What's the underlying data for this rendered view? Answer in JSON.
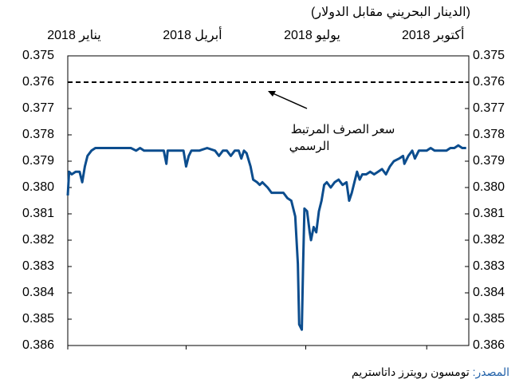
{
  "chart_data": {
    "type": "line",
    "title": "(الدينار البحريني مقابل الدولار)",
    "x": [
      0,
      1,
      3,
      6,
      9,
      11,
      13,
      15,
      18,
      21,
      24,
      30,
      39,
      45,
      48,
      52,
      55,
      58,
      61,
      64,
      70,
      73,
      75,
      76,
      79,
      82,
      85,
      88,
      90,
      92,
      94,
      97,
      100,
      106,
      112,
      115,
      118,
      121,
      124,
      127,
      130,
      132,
      134,
      136,
      139,
      141,
      144,
      146,
      148,
      152,
      155,
      158,
      161,
      164,
      167,
      170,
      173,
      175,
      176,
      178,
      179,
      180,
      182,
      184,
      185,
      187,
      189,
      191,
      193,
      195,
      197,
      200,
      203,
      206,
      209,
      212,
      214,
      216,
      218,
      220,
      222,
      224,
      227,
      230,
      233,
      236,
      239,
      242,
      245,
      248,
      252,
      255,
      256,
      259,
      262,
      264,
      267,
      270,
      273,
      276,
      279,
      282,
      285,
      288,
      291,
      294,
      297,
      300,
      303
    ],
    "series": [
      {
        "color": "#0c4d8e",
        "values": [
          0.3803,
          0.3794,
          0.3795,
          0.3794,
          0.3794,
          0.3798,
          0.3792,
          0.3788,
          0.3786,
          0.3785,
          0.3785,
          0.3785,
          0.3785,
          0.3785,
          0.3785,
          0.3786,
          0.3785,
          0.3786,
          0.3786,
          0.3786,
          0.3786,
          0.3786,
          0.3791,
          0.3786,
          0.3786,
          0.3786,
          0.3786,
          0.3786,
          0.3792,
          0.3788,
          0.3786,
          0.3786,
          0.3786,
          0.3785,
          0.3786,
          0.3788,
          0.3786,
          0.3786,
          0.3788,
          0.3786,
          0.3786,
          0.3789,
          0.3786,
          0.3787,
          0.3792,
          0.3797,
          0.3798,
          0.3799,
          0.3798,
          0.38,
          0.3802,
          0.3802,
          0.3802,
          0.3802,
          0.3804,
          0.3805,
          0.3811,
          0.3829,
          0.3852,
          0.3854,
          0.3829,
          0.3808,
          0.3809,
          0.3817,
          0.382,
          0.3815,
          0.3817,
          0.3809,
          0.3805,
          0.3799,
          0.3798,
          0.38,
          0.3798,
          0.3797,
          0.3799,
          0.3798,
          0.3805,
          0.3802,
          0.3798,
          0.3794,
          0.3797,
          0.3795,
          0.3795,
          0.3794,
          0.3795,
          0.3794,
          0.3793,
          0.3795,
          0.3792,
          0.379,
          0.3789,
          0.3788,
          0.3791,
          0.3788,
          0.3786,
          0.3789,
          0.3786,
          0.3786,
          0.3786,
          0.3785,
          0.3786,
          0.3786,
          0.3786,
          0.3786,
          0.3785,
          0.3785,
          0.3784,
          0.3785,
          0.3785
        ]
      }
    ],
    "xlim": [
      0,
      305
    ],
    "xticks": [
      {
        "value": 0,
        "label": "يناير 2018"
      },
      {
        "value": 90,
        "label": "أبريل 2018"
      },
      {
        "value": 181,
        "label": "يوليو 2018"
      },
      {
        "value": 273,
        "label": "أكتوبر 2018"
      }
    ],
    "ylim": [
      0.375,
      0.386
    ],
    "y_inverted": true,
    "yticks": [
      0.375,
      0.376,
      0.377,
      0.378,
      0.379,
      {
        "value": 0.38,
        "label": "0.380"
      },
      0.381,
      0.382,
      0.383,
      0.384,
      0.385,
      0.386
    ],
    "reference_line": {
      "value": 0.376,
      "color": "#000000",
      "dashed": true
    },
    "annotation": [
      "سعر الصرف المرتبط",
      "الرسمي"
    ],
    "source": {
      "label": "المصدر:",
      "label_color": "#1f5fa8",
      "text": " تومسون رويترز داتاستريم"
    }
  }
}
